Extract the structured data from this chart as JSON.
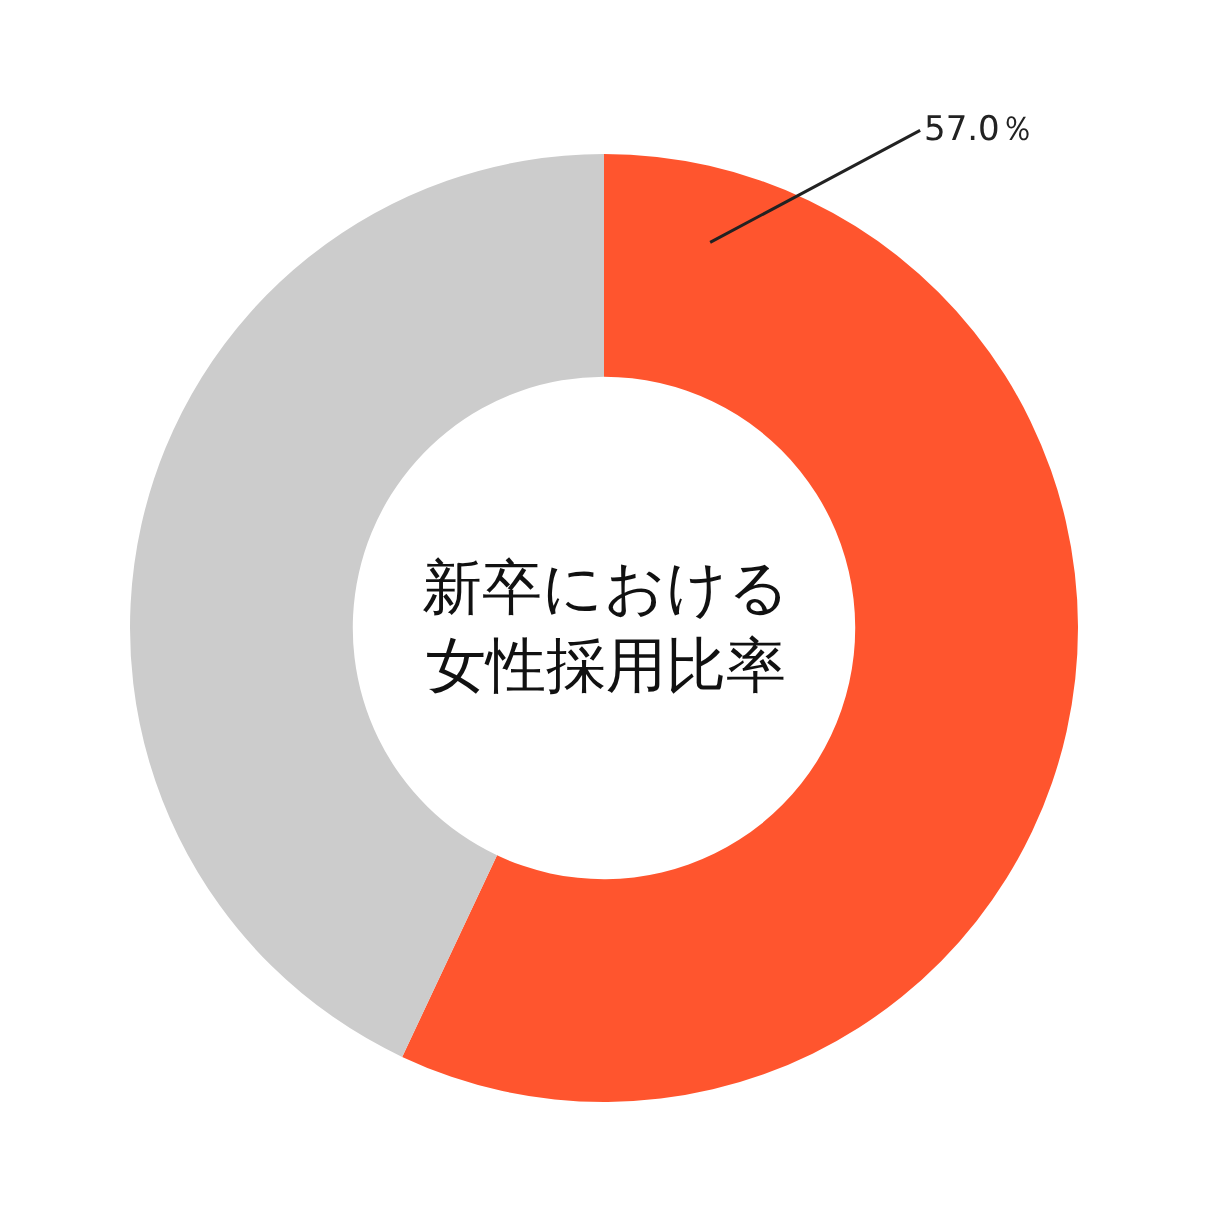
{
  "chart_data": {
    "type": "donut",
    "title": "新卒における女性採用比率",
    "categories": [
      null,
      null
    ],
    "values": [
      57.0,
      43.0
    ],
    "colors": [
      "#ff552e",
      "#cccccc"
    ],
    "value_labels": [
      "57.0％",
      null
    ],
    "legend": false
  }
}
